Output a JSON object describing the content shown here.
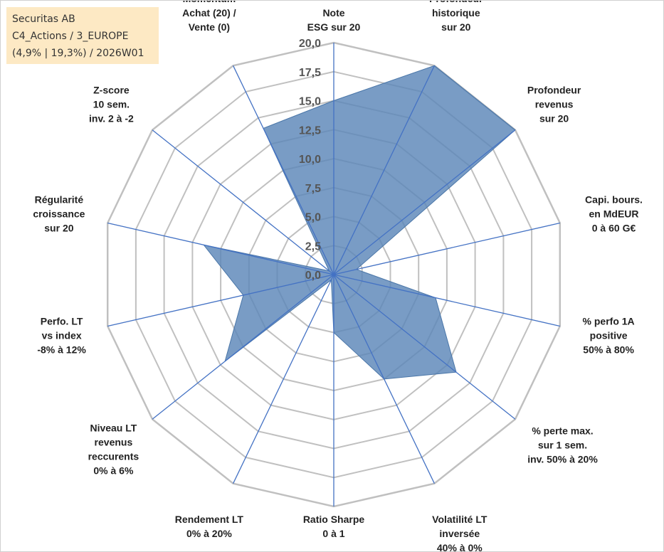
{
  "info": {
    "line1": "Securitas AB",
    "line2": "C4_Actions / 3_EUROPE",
    "line3": "(4,9% | 19,3%) / 2026W01"
  },
  "chart_data": {
    "type": "radar",
    "title": "",
    "rmax": 20,
    "ticks": [
      "0,0",
      "2,5",
      "5,0",
      "7,5",
      "10,0",
      "12,5",
      "15,0",
      "17,5",
      "20,0"
    ],
    "axes": [
      [
        "Note",
        "ESG sur 20"
      ],
      [
        "Profondeur",
        "historique",
        "sur 20"
      ],
      [
        "Profondeur",
        "revenus",
        "sur 20"
      ],
      [
        "Capi. bours.",
        "en MdEUR",
        "0 à 60 G€"
      ],
      [
        "% perfo 1A",
        "positive",
        "50% à 80%"
      ],
      [
        "% perte max.",
        "sur 1 sem.",
        "inv. 50% à 20%"
      ],
      [
        "Volatilité LT",
        "inversée",
        "40% à 0%"
      ],
      [
        "Ratio Sharpe",
        "0 à 1"
      ],
      [
        "Rendement LT",
        "0% à 20%"
      ],
      [
        "Niveau LT",
        "revenus",
        "reccurents",
        "0% à 6%"
      ],
      [
        "Perfo. LT",
        "vs index",
        "-8% à 12%"
      ],
      [
        "Régularité",
        "croissance",
        "sur 20"
      ],
      [
        "Z-score",
        "10 sem.",
        "inv. 2 à -2"
      ],
      [
        "Momentum",
        "Achat (20) /",
        "Vente (0)"
      ]
    ],
    "series": [
      {
        "values": [
          15,
          20,
          20,
          2,
          9,
          13.5,
          10,
          5,
          0.5,
          12,
          8,
          11.5,
          0.5,
          14
        ]
      }
    ],
    "colors": {
      "fill": "#5b86b8",
      "fill_opacity": 0.82,
      "series_line": "#4a76a8",
      "spokes": "#4472c4",
      "grid": "#c0c0c0"
    }
  }
}
